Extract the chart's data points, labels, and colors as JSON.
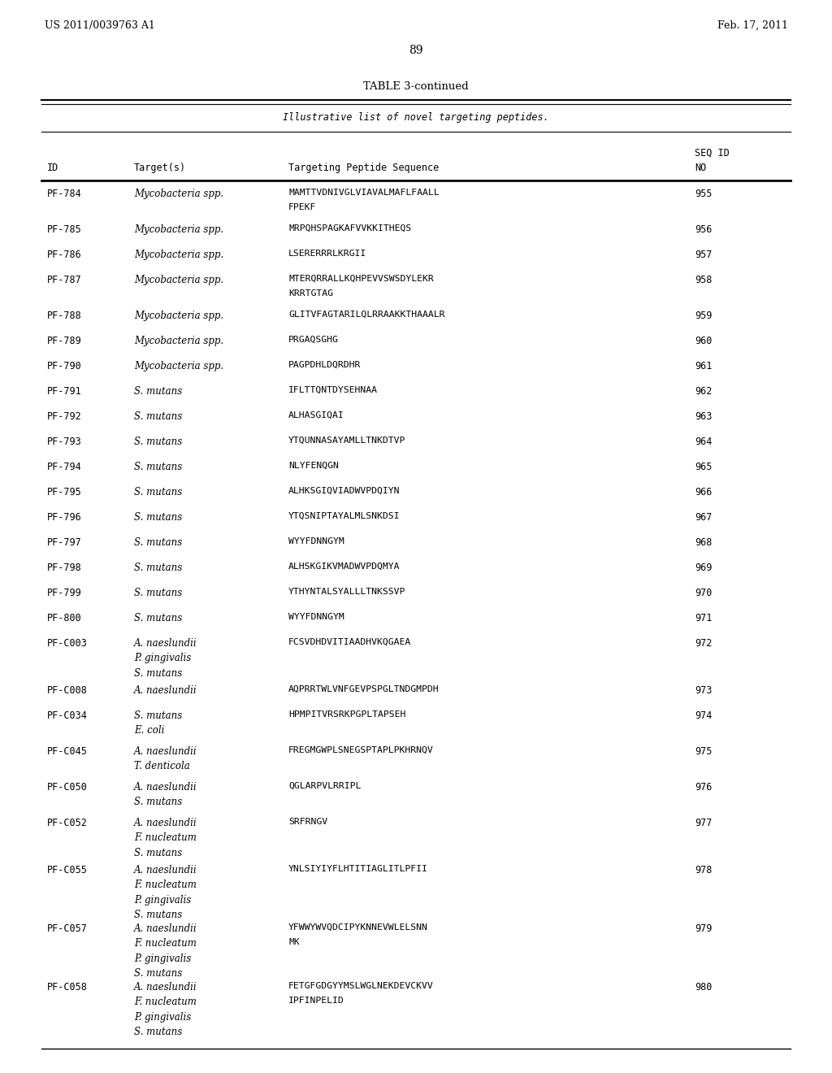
{
  "header_left": "US 2011/0039763 A1",
  "header_right": "Feb. 17, 2011",
  "page_number": "89",
  "table_title": "TABLE 3-continued",
  "table_subtitle": "Illustrative list of novel targeting peptides.",
  "col_headers": [
    "ID",
    "Target(s)",
    "Targeting Peptide Sequence",
    "SEQ ID\nNO"
  ],
  "rows": [
    {
      "id": "PF-784",
      "targets": [
        "Mycobacteria spp."
      ],
      "sequence": [
        "MAMTTVDNIVGLVIAVALMAFLFAALL",
        "FPEKF"
      ],
      "seq_id": "955"
    },
    {
      "id": "PF-785",
      "targets": [
        "Mycobacteria spp."
      ],
      "sequence": [
        "MRPQHSPAGKAFVVKKITHEQS"
      ],
      "seq_id": "956"
    },
    {
      "id": "PF-786",
      "targets": [
        "Mycobacteria spp."
      ],
      "sequence": [
        "LSERERRRLKRGII"
      ],
      "seq_id": "957"
    },
    {
      "id": "PF-787",
      "targets": [
        "Mycobacteria spp."
      ],
      "sequence": [
        "MTERQRRALLKQHPEVVSWSDYLEKR",
        "KRRTGTAG"
      ],
      "seq_id": "958"
    },
    {
      "id": "PF-788",
      "targets": [
        "Mycobacteria spp."
      ],
      "sequence": [
        "GLITVFAGTARILQLRRAAKKTHAAALR"
      ],
      "seq_id": "959"
    },
    {
      "id": "PF-789",
      "targets": [
        "Mycobacteria spp."
      ],
      "sequence": [
        "PRGAQSGHG"
      ],
      "seq_id": "960"
    },
    {
      "id": "PF-790",
      "targets": [
        "Mycobacteria spp."
      ],
      "sequence": [
        "PAGPDHLDQRDHR"
      ],
      "seq_id": "961"
    },
    {
      "id": "PF-791",
      "targets": [
        "S. mutans"
      ],
      "sequence": [
        "IFLTTQNTDYSEHNAA"
      ],
      "seq_id": "962"
    },
    {
      "id": "PF-792",
      "targets": [
        "S. mutans"
      ],
      "sequence": [
        "ALHASGIQAI"
      ],
      "seq_id": "963"
    },
    {
      "id": "PF-793",
      "targets": [
        "S. mutans"
      ],
      "sequence": [
        "YTQUNNASAYAMLLTNKDTVP"
      ],
      "seq_id": "964"
    },
    {
      "id": "PF-794",
      "targets": [
        "S. mutans"
      ],
      "sequence": [
        "NLYFENQGN"
      ],
      "seq_id": "965"
    },
    {
      "id": "PF-795",
      "targets": [
        "S. mutans"
      ],
      "sequence": [
        "ALHKSGIQVIADWVPDQIYN"
      ],
      "seq_id": "966"
    },
    {
      "id": "PF-796",
      "targets": [
        "S. mutans"
      ],
      "sequence": [
        "YTQSNIPTAYALMLSNKDSI"
      ],
      "seq_id": "967"
    },
    {
      "id": "PF-797",
      "targets": [
        "S. mutans"
      ],
      "sequence": [
        "WYYFDNNGYM"
      ],
      "seq_id": "968"
    },
    {
      "id": "PF-798",
      "targets": [
        "S. mutans"
      ],
      "sequence": [
        "ALHSKGIKVMADWVPDQMYA"
      ],
      "seq_id": "969"
    },
    {
      "id": "PF-799",
      "targets": [
        "S. mutans"
      ],
      "sequence": [
        "YTHYNTALSYALLLTNKSSVP"
      ],
      "seq_id": "970"
    },
    {
      "id": "PF-800",
      "targets": [
        "S. mutans"
      ],
      "sequence": [
        "WYYFDNNGYM"
      ],
      "seq_id": "971"
    },
    {
      "id": "PF-C003",
      "targets": [
        "A. naeslundii",
        "P. gingivalis",
        "S. mutans"
      ],
      "sequence": [
        "FCSVDHDVITIAADHVKQGAEA"
      ],
      "seq_id": "972"
    },
    {
      "id": "PF-C008",
      "targets": [
        "A. naeslundii"
      ],
      "sequence": [
        "AQPRRTWLVNFGEVPSPGLTNDGMPDH"
      ],
      "seq_id": "973"
    },
    {
      "id": "PF-C034",
      "targets": [
        "S. mutans",
        "E. coli"
      ],
      "sequence": [
        "HPMPITVRSRKPGPLTAPSEH"
      ],
      "seq_id": "974"
    },
    {
      "id": "PF-C045",
      "targets": [
        "A. naeslundii",
        "T. denticola"
      ],
      "sequence": [
        "FREGMGWPLSNEGSPTAPLPKHRNQV"
      ],
      "seq_id": "975"
    },
    {
      "id": "PF-C050",
      "targets": [
        "A. naeslundii",
        "S. mutans"
      ],
      "sequence": [
        "QGLARPVLRRIPL"
      ],
      "seq_id": "976"
    },
    {
      "id": "PF-C052",
      "targets": [
        "A. naeslundii",
        "F. nucleatum",
        "S. mutans"
      ],
      "sequence": [
        "SRFRNGV"
      ],
      "seq_id": "977"
    },
    {
      "id": "PF-C055",
      "targets": [
        "A. naeslundii",
        "F. nucleatum",
        "P. gingivalis",
        "S. mutans"
      ],
      "sequence": [
        "YNLSIYIYFLHTITIAGLITLPFII"
      ],
      "seq_id": "978"
    },
    {
      "id": "PF-C057",
      "targets": [
        "A. naeslundii",
        "F. nucleatum",
        "P. gingivalis",
        "S. mutans"
      ],
      "sequence": [
        "YFWWYWVQDCIPYKNNEVWLELSNN",
        "MK"
      ],
      "seq_id": "979"
    },
    {
      "id": "PF-C058",
      "targets": [
        "A. naeslundii",
        "F. nucleatum",
        "P. gingivalis",
        "S. mutans"
      ],
      "sequence": [
        "FETGFGDGYYMSLWGLNEKDEVCKVV",
        "IPFINPELID"
      ],
      "seq_id": "980"
    }
  ],
  "italic_targets": [
    "Mycobacteria",
    "S.",
    "A.",
    "P.",
    "E.",
    "T.",
    "F."
  ],
  "background_color": "#ffffff",
  "text_color": "#000000",
  "font_size": 8.5,
  "mono_font_size": 8.0
}
